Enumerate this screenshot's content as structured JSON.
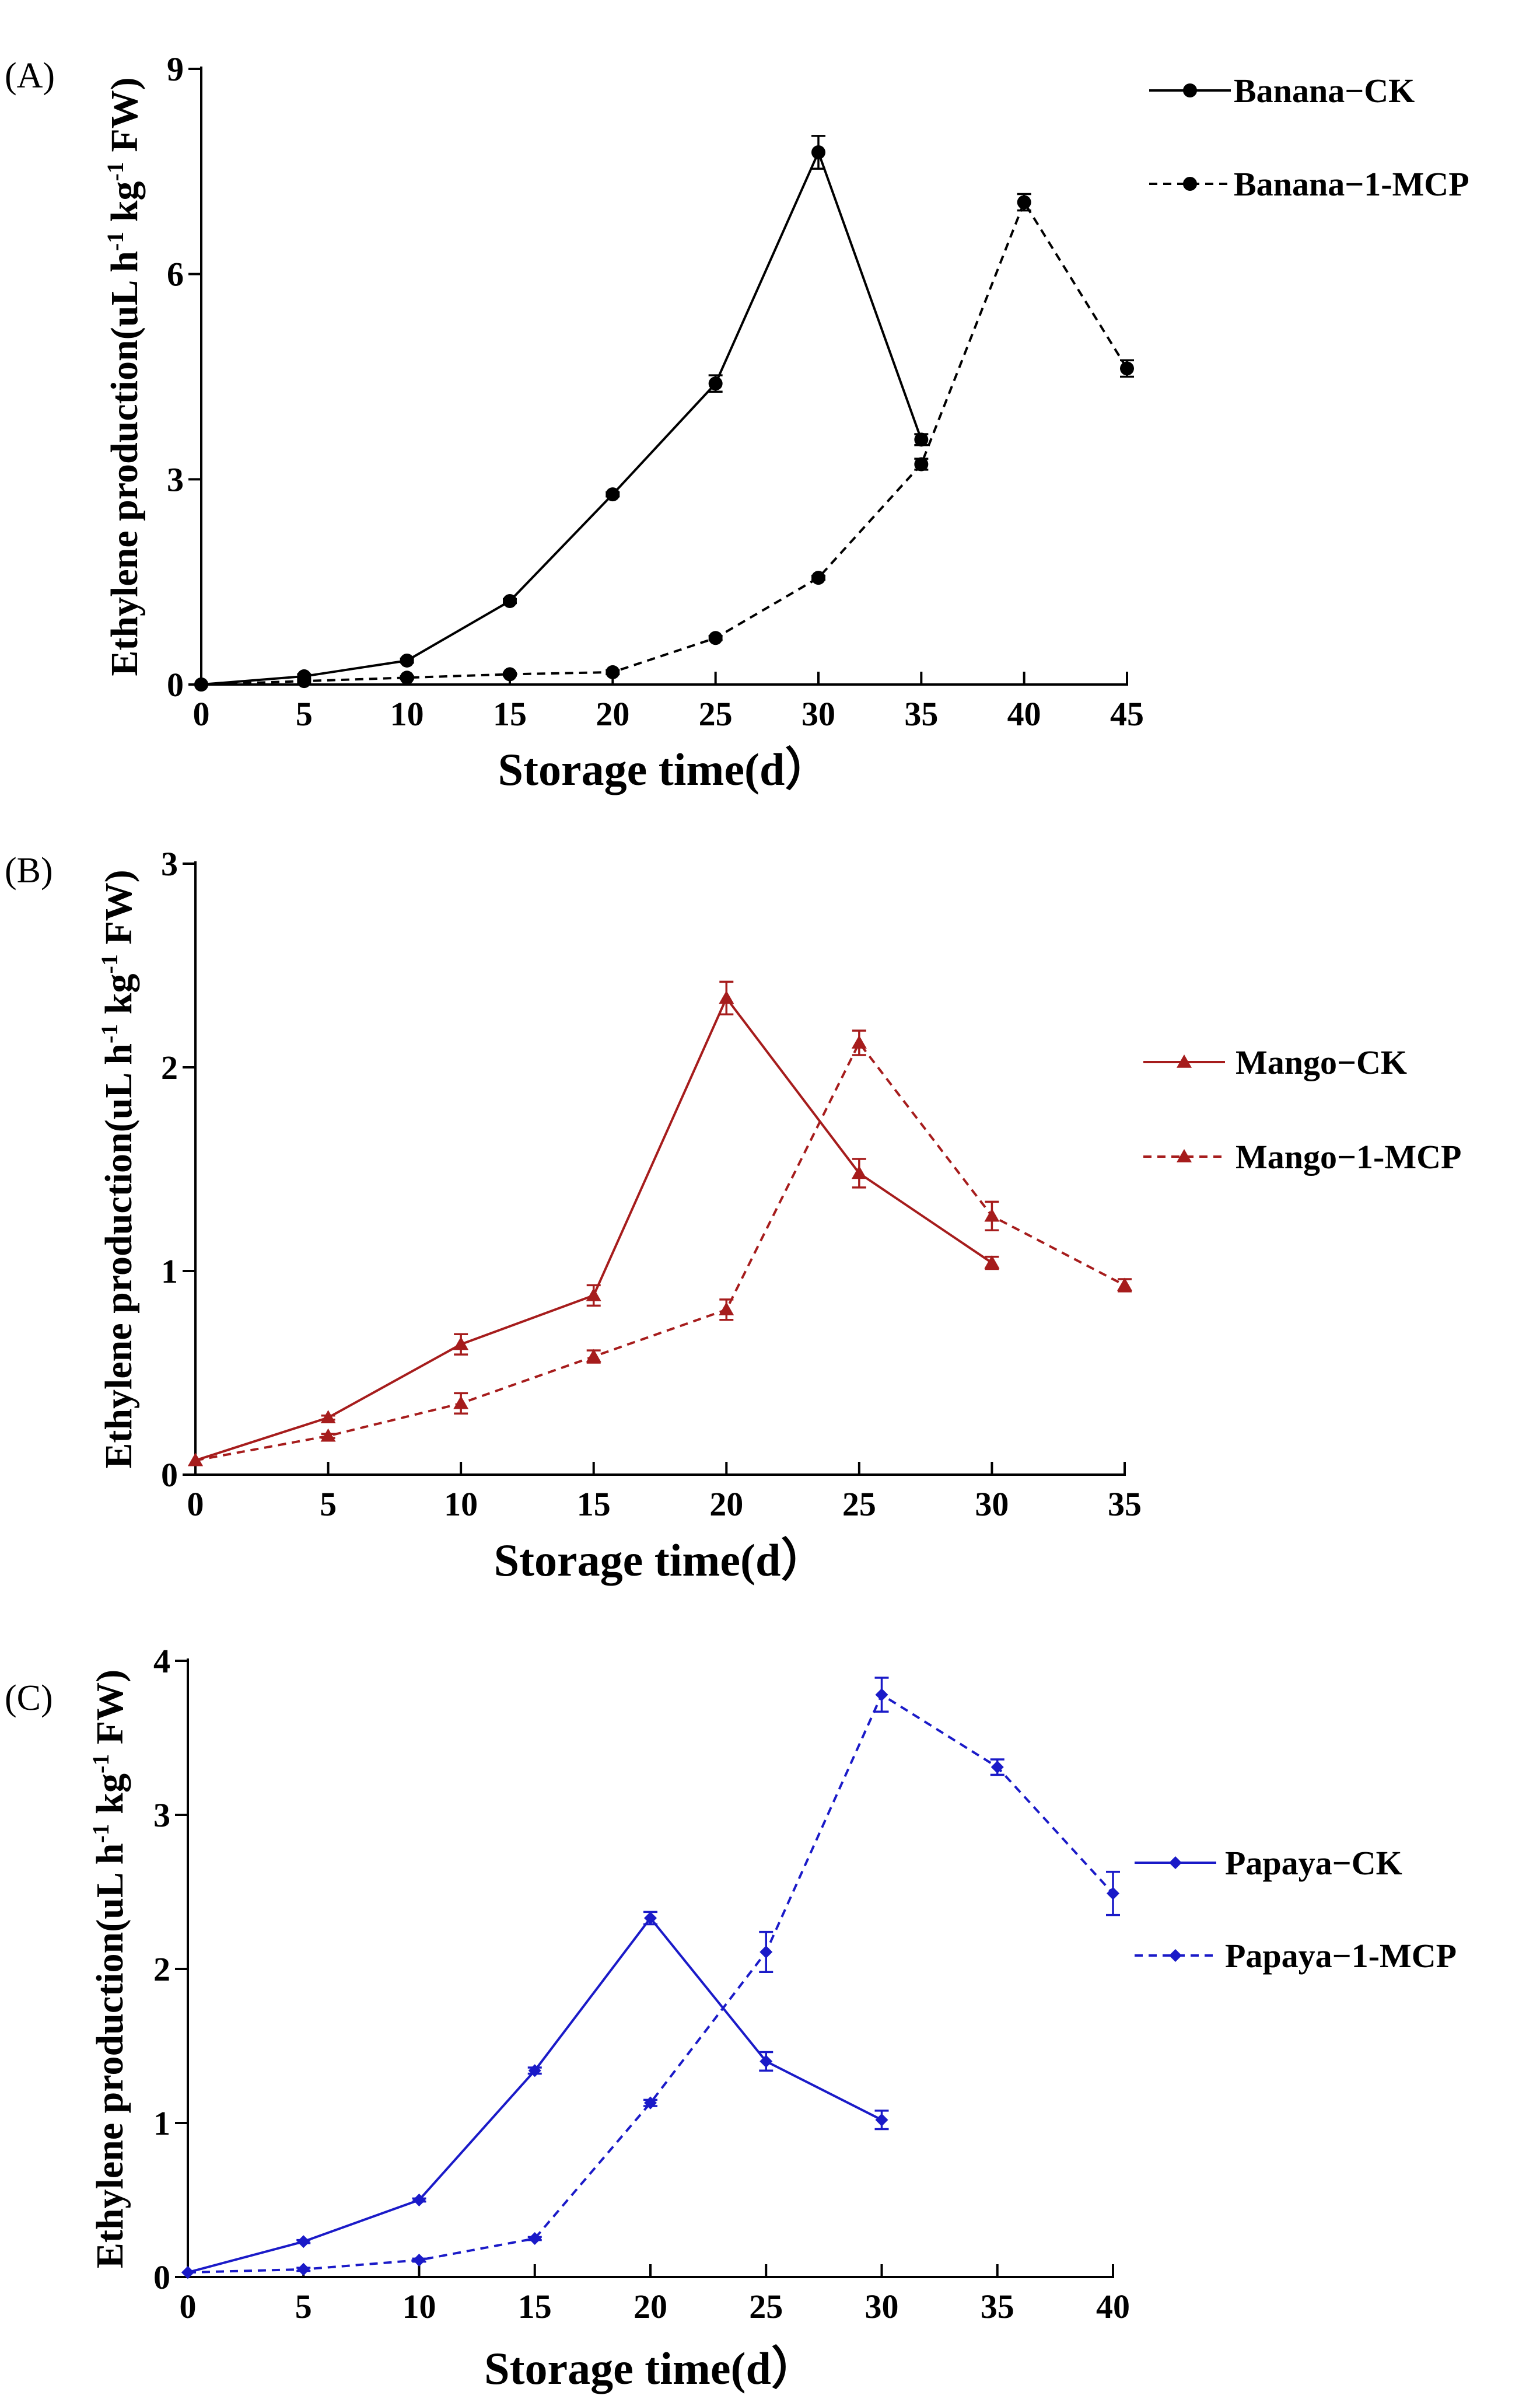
{
  "figure": {
    "panels": [
      "A",
      "B",
      "C"
    ]
  },
  "chart_data": [
    {
      "type": "line",
      "panel_label": "(A)",
      "xlabel": "Storage time(d）",
      "ylabel": {
        "main": "Ethylene production(uL h",
        "sup1": "-1",
        "mid": " kg",
        "sup2": "-1",
        "end": " FW)"
      },
      "xlim": [
        0,
        45
      ],
      "ylim": [
        0,
        9
      ],
      "xticks": [
        0,
        5,
        10,
        15,
        20,
        25,
        30,
        35,
        40,
        45
      ],
      "yticks": [
        0,
        3,
        6,
        9
      ],
      "color": "#000000",
      "marker": "circle",
      "legend_position": "top-right",
      "series": [
        {
          "name": "Banana−CK",
          "dashed": false,
          "x": [
            0,
            5,
            10,
            15,
            20,
            25,
            30,
            35
          ],
          "y": [
            0,
            0.12,
            0.35,
            1.22,
            2.78,
            4.4,
            7.78,
            3.58
          ],
          "err": [
            0,
            0.03,
            0.03,
            0.03,
            0.03,
            0.12,
            0.24,
            0.08
          ]
        },
        {
          "name": "Banana−1-MCP",
          "dashed": true,
          "x": [
            0,
            5,
            10,
            15,
            20,
            25,
            30,
            35,
            40,
            45
          ],
          "y": [
            0,
            0.05,
            0.1,
            0.15,
            0.18,
            0.68,
            1.56,
            3.22,
            7.05,
            4.62
          ],
          "err": [
            0,
            0.02,
            0.02,
            0.02,
            0.03,
            0.03,
            0.03,
            0.08,
            0.12,
            0.12
          ]
        }
      ]
    },
    {
      "type": "line",
      "panel_label": "(B)",
      "xlabel": "Storage time(d）",
      "ylabel": {
        "main": "Ethylene production(uL h",
        "sup1": "-1",
        "mid": " kg",
        "sup2": "-1",
        "end": " FW)"
      },
      "xlim": [
        0,
        35
      ],
      "ylim": [
        0,
        3
      ],
      "xticks": [
        0,
        5,
        10,
        15,
        20,
        25,
        30,
        35
      ],
      "yticks": [
        0,
        1,
        2,
        3
      ],
      "color": "#a61c1c",
      "marker": "triangle",
      "legend_position": "right",
      "series": [
        {
          "name": "Mango−CK",
          "dashed": false,
          "x": [
            0,
            5,
            10,
            15,
            20,
            25,
            30
          ],
          "y": [
            0.07,
            0.28,
            0.64,
            0.88,
            2.34,
            1.48,
            1.04
          ],
          "err": [
            0,
            0.01,
            0.05,
            0.05,
            0.08,
            0.07,
            0.03
          ]
        },
        {
          "name": "Mango−1-MCP",
          "dashed": true,
          "x": [
            0,
            5,
            10,
            15,
            20,
            25,
            30,
            35
          ],
          "y": [
            0.07,
            0.19,
            0.35,
            0.58,
            0.81,
            2.12,
            1.27,
            0.93
          ],
          "err": [
            0,
            0.01,
            0.05,
            0.03,
            0.05,
            0.06,
            0.07,
            0.03
          ]
        }
      ]
    },
    {
      "type": "line",
      "panel_label": "(C)",
      "xlabel": "Storage time(d）",
      "ylabel": {
        "main": "Ethylene production(uL h",
        "sup1": "-1",
        "mid": " kg",
        "sup2": "-1",
        "end": " FW)"
      },
      "xlim": [
        0,
        40
      ],
      "ylim": [
        0,
        4
      ],
      "xticks": [
        0,
        5,
        10,
        15,
        20,
        25,
        30,
        35,
        40
      ],
      "yticks": [
        0,
        1,
        2,
        3,
        4
      ],
      "color": "#1a1ac8",
      "marker": "diamond",
      "legend_position": "right",
      "series": [
        {
          "name": "Papaya−CK",
          "dashed": false,
          "x": [
            0,
            5,
            10,
            15,
            20,
            25,
            30
          ],
          "y": [
            0.03,
            0.23,
            0.5,
            1.34,
            2.33,
            1.4,
            1.02
          ],
          "err": [
            0,
            0.01,
            0.01,
            0.02,
            0.04,
            0.06,
            0.06
          ]
        },
        {
          "name": "Papaya−1-MCP",
          "dashed": true,
          "x": [
            0,
            5,
            10,
            15,
            20,
            25,
            30,
            35,
            40
          ],
          "y": [
            0.03,
            0.05,
            0.11,
            0.25,
            1.13,
            2.11,
            3.78,
            3.31,
            2.49
          ],
          "err": [
            0,
            0.01,
            0.01,
            0.01,
            0.02,
            0.13,
            0.11,
            0.05,
            0.14
          ]
        }
      ]
    }
  ]
}
